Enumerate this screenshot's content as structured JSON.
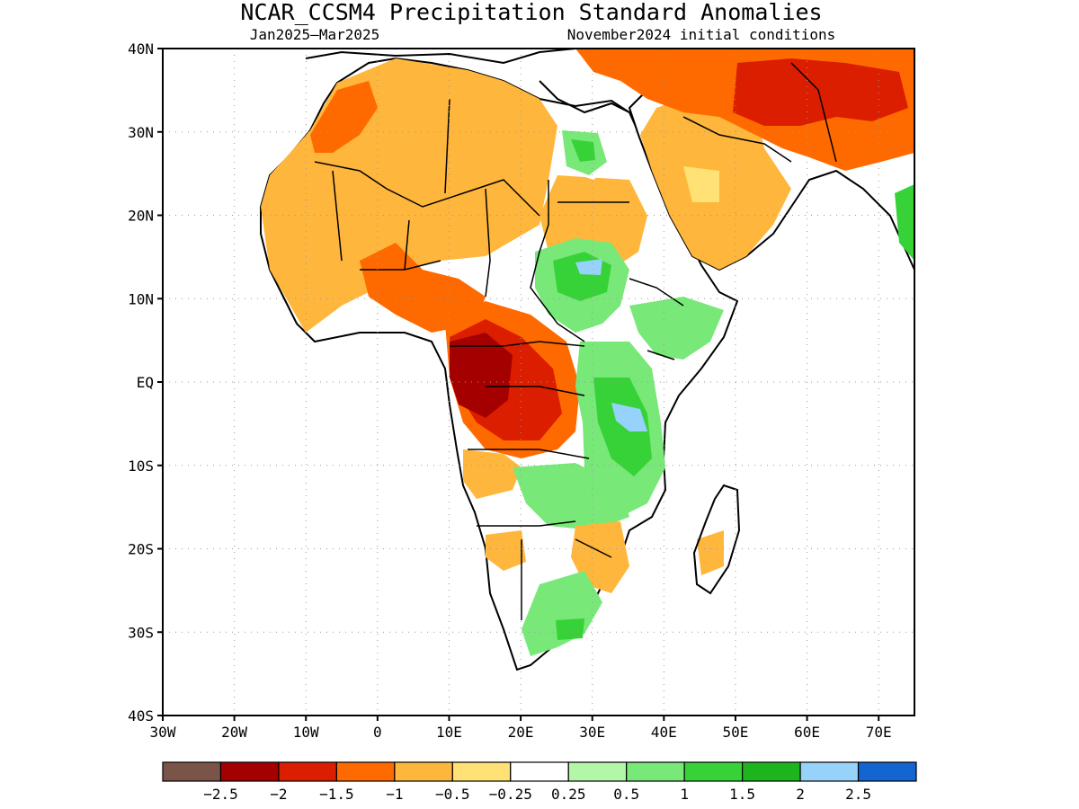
{
  "title": "NCAR_CCSM4 Precipitation Standard Anomalies",
  "subtitle_left": "Jan2025–Mar2025",
  "subtitle_right": "November2024 initial conditions",
  "map": {
    "lon_range": [
      -30,
      75
    ],
    "lat_range": [
      -40,
      40
    ],
    "lat_ticks": [
      {
        "value": 40,
        "label": "40N"
      },
      {
        "value": 30,
        "label": "30N"
      },
      {
        "value": 20,
        "label": "20N"
      },
      {
        "value": 10,
        "label": "10N"
      },
      {
        "value": 0,
        "label": "EQ"
      },
      {
        "value": -10,
        "label": "10S"
      },
      {
        "value": -20,
        "label": "20S"
      },
      {
        "value": -30,
        "label": "30S"
      },
      {
        "value": -40,
        "label": "40S"
      }
    ],
    "lon_ticks": [
      {
        "value": -30,
        "label": "30W"
      },
      {
        "value": -20,
        "label": "20W"
      },
      {
        "value": -10,
        "label": "10W"
      },
      {
        "value": 0,
        "label": "0"
      },
      {
        "value": 10,
        "label": "10E"
      },
      {
        "value": 20,
        "label": "20E"
      },
      {
        "value": 30,
        "label": "30E"
      },
      {
        "value": 40,
        "label": "40E"
      },
      {
        "value": 50,
        "label": "50E"
      },
      {
        "value": 60,
        "label": "60E"
      },
      {
        "value": 70,
        "label": "70E"
      }
    ],
    "grid": true
  },
  "colorbar": {
    "colors": [
      "#7b5449",
      "#a50000",
      "#dc1e00",
      "#ff6a00",
      "#ffb63c",
      "#ffe175",
      "#ffffff",
      "#b4f6a8",
      "#78e878",
      "#37d238",
      "#1eb41e",
      "#96d2fa",
      "#1464d2"
    ],
    "labels": [
      "−2.5",
      "−2",
      "−1.5",
      "−1",
      "−0.5",
      "−0.25",
      "0.25",
      "0.5",
      "1",
      "1.5",
      "2",
      "2.5"
    ]
  }
}
